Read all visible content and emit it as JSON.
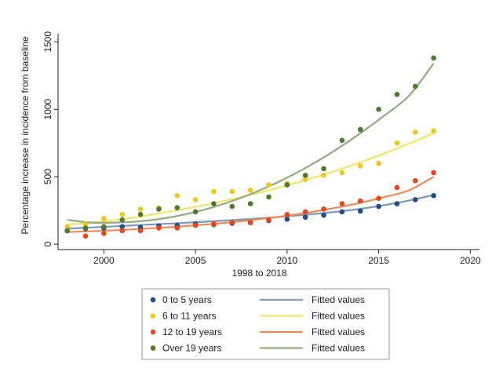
{
  "chart_data": {
    "type": "scatter",
    "title": "",
    "xlabel": "1998 to 2018",
    "ylabel": "Percentage increase in incidence from baseline",
    "xlim": [
      1997.5,
      2020.5
    ],
    "ylim": [
      -40,
      1560
    ],
    "xticks": [
      2000,
      2005,
      2010,
      2015,
      2020
    ],
    "yticks": [
      0,
      500,
      1000,
      1500
    ],
    "grid": false,
    "legend_position": "bottom",
    "x": [
      1998,
      1999,
      2000,
      2001,
      2002,
      2003,
      2004,
      2005,
      2006,
      2007,
      2008,
      2009,
      2010,
      2011,
      2012,
      2013,
      2014,
      2015,
      2016,
      2017,
      2018
    ],
    "series": [
      {
        "name": "0 to 5 years",
        "fitted_name": "Fitted values",
        "color": "#1f4e8c",
        "fit_color": "#7f98b5",
        "values": [
          100,
          115,
          120,
          130,
          125,
          135,
          140,
          150,
          145,
          155,
          160,
          175,
          185,
          200,
          215,
          240,
          245,
          280,
          300,
          330,
          360
        ],
        "fit": [
          115,
          124,
          133,
          142,
          151,
          160,
          170,
          181,
          193,
          206,
          222,
          240,
          262,
          290,
          324,
          365
        ]
      },
      {
        "name": "6 to 11 years",
        "fitted_name": "Fitted values",
        "color": "#f2c61c",
        "fit_color": "#f6e36a",
        "values": [
          130,
          150,
          190,
          220,
          260,
          270,
          360,
          330,
          390,
          390,
          400,
          440,
          450,
          480,
          510,
          530,
          580,
          600,
          750,
          830,
          840
        ],
        "fit": [
          145,
          160,
          180,
          205,
          235,
          268,
          304,
          344,
          388,
          436,
          488,
          545,
          607,
          674,
          746,
          823
        ]
      },
      {
        "name": "12 to 19 years",
        "fitted_name": "Fitted values",
        "color": "#e8461c",
        "fit_color": "#ef8a57",
        "values": [
          100,
          60,
          80,
          100,
          100,
          120,
          120,
          140,
          150,
          160,
          160,
          180,
          220,
          240,
          260,
          300,
          320,
          340,
          420,
          470,
          530
        ],
        "fit": [
          90,
          96,
          104,
          113,
          124,
          137,
          151,
          168,
          188,
          211,
          238,
          270,
          307,
          350,
          400,
          500
        ]
      },
      {
        "name": "Over 19 years",
        "fitted_name": "Fitted values",
        "color": "#4e7a2e",
        "fit_color": "#93ab80",
        "values": [
          100,
          120,
          130,
          180,
          220,
          260,
          270,
          240,
          300,
          280,
          300,
          350,
          440,
          510,
          560,
          770,
          850,
          1000,
          1110,
          1170,
          1380
        ],
        "fit": [
          180,
          160,
          160,
          170,
          193,
          228,
          276,
          336,
          408,
          493,
          590,
          700,
          822,
          956,
          1102,
          1340
        ]
      }
    ]
  }
}
